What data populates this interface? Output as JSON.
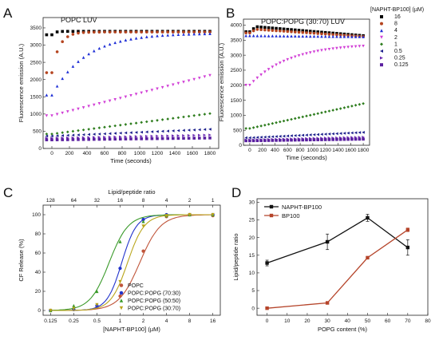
{
  "figure_labels": [
    "A",
    "B",
    "C",
    "D"
  ],
  "legend_top": {
    "title": "[NAPHT-BP100] (µM)",
    "entries": [
      {
        "label": "16",
        "color": "#000000",
        "marker": "square"
      },
      {
        "label": "8",
        "color": "#b5441f",
        "marker": "circle"
      },
      {
        "label": "4",
        "color": "#1f2fd6",
        "marker": "triangle-up"
      },
      {
        "label": "2",
        "color": "#d13fd6",
        "marker": "triangle-down"
      },
      {
        "label": "1",
        "color": "#2e7d1e",
        "marker": "diamond"
      },
      {
        "label": "0.5",
        "color": "#1b1f8c",
        "marker": "triangle-left"
      },
      {
        "label": "0.25",
        "color": "#6c2cb3",
        "marker": "triangle-right"
      },
      {
        "label": "0.125",
        "color": "#5a1fa0",
        "marker": "square"
      }
    ]
  },
  "chart_data": [
    {
      "id": "A",
      "type": "scatter",
      "title": "POPC LUV",
      "xlabel": "Time (seconds)",
      "ylabel": "Fluorescence emission (A.U.)",
      "xlim": [
        -100,
        1900
      ],
      "ylim": [
        0,
        3800
      ],
      "xticks": [
        0,
        200,
        400,
        600,
        800,
        1000,
        1200,
        1400,
        1600,
        1800
      ],
      "yticks": [
        0,
        500,
        1000,
        1500,
        2000,
        2500,
        3000,
        3500
      ],
      "series": [
        {
          "name": "16",
          "model": {
            "type": "exp",
            "a": 3300,
            "b": 3400,
            "k": 0.03
          }
        },
        {
          "name": "8",
          "model": {
            "type": "exp",
            "a": 2200,
            "b": 3380,
            "k": 0.012
          }
        },
        {
          "name": "4",
          "model": {
            "type": "exp",
            "a": 1550,
            "b": 3350,
            "k": 0.0026
          }
        },
        {
          "name": "2",
          "model": {
            "type": "lin",
            "a": 950,
            "m": 0.65
          }
        },
        {
          "name": "1",
          "model": {
            "type": "lin",
            "a": 420,
            "m": 0.33
          }
        },
        {
          "name": "0.5",
          "model": {
            "type": "lin",
            "a": 360,
            "m": 0.11
          }
        },
        {
          "name": "0.25",
          "model": {
            "type": "lin",
            "a": 300,
            "m": 0.05
          }
        },
        {
          "name": "0.125",
          "model": {
            "type": "lin",
            "a": 250,
            "m": 0.03
          }
        }
      ]
    },
    {
      "id": "B",
      "type": "scatter",
      "title": "POPC:POPG (30:70) LUV",
      "xlabel": "Time (seconds)",
      "ylabel": "Fluorescence emission (A.U.)",
      "xlim": [
        -100,
        1900
      ],
      "ylim": [
        0,
        4200
      ],
      "xticks": [
        0,
        200,
        400,
        600,
        800,
        1000,
        1200,
        1400,
        1600,
        1800
      ],
      "yticks": [
        0,
        500,
        1000,
        1500,
        2000,
        2500,
        3000,
        3500,
        4000
      ],
      "series": [
        {
          "name": "16",
          "model": {
            "type": "peak",
            "a": 3780,
            "peak": 3950,
            "end": 3650
          }
        },
        {
          "name": "8",
          "model": {
            "type": "peak",
            "a": 3740,
            "peak": 3860,
            "end": 3620
          }
        },
        {
          "name": "4",
          "model": {
            "type": "lin",
            "a": 3650,
            "m": -0.02
          }
        },
        {
          "name": "2",
          "model": {
            "type": "exp",
            "a": 2000,
            "b": 3380,
            "k": 0.0016
          }
        },
        {
          "name": "1",
          "model": {
            "type": "lin",
            "a": 560,
            "m": 0.46
          }
        },
        {
          "name": "0.5",
          "model": {
            "type": "lin",
            "a": 250,
            "m": 0.1
          }
        },
        {
          "name": "0.25",
          "model": {
            "type": "lin",
            "a": 180,
            "m": 0.05
          }
        },
        {
          "name": "0.125",
          "model": {
            "type": "lin",
            "a": 150,
            "m": 0.03
          }
        }
      ]
    },
    {
      "id": "C",
      "type": "scatter",
      "xlabel": "[NAPHT-BP100] (µM)",
      "ylabel": "CF Release (%)",
      "x2label": "Lipid/peptide ratio",
      "xscale": "log2",
      "xlim": [
        0.1,
        20
      ],
      "ylim": [
        -5,
        110
      ],
      "xticks": [
        0.125,
        0.25,
        0.5,
        1,
        2,
        4,
        8,
        16
      ],
      "xticklabels": [
        "0.125",
        "0.25",
        "0.5",
        "1",
        "2",
        "4",
        "8",
        "16"
      ],
      "x2ticklabels": [
        "128",
        "64",
        "32",
        "16",
        "8",
        "4",
        "2",
        "1"
      ],
      "yticks": [
        0,
        20,
        40,
        60,
        80,
        100
      ],
      "series": [
        {
          "name": "POPC",
          "color": "#c0553a",
          "marker": "circle",
          "x": [
            0.125,
            0.25,
            0.5,
            1,
            2,
            4,
            8,
            16
          ],
          "y": [
            0,
            1,
            3,
            15,
            62,
            98,
            100,
            99
          ],
          "ec50": 1.8,
          "hill": 3.2
        },
        {
          "name": "POPC:POPG (70:30)",
          "color": "#2233cc",
          "marker": "circle",
          "x": [
            0.125,
            0.25,
            0.5,
            1,
            2,
            4,
            8,
            16
          ],
          "y": [
            0,
            1,
            5,
            44,
            95,
            100,
            100,
            100
          ],
          "ec50": 1.05,
          "hill": 4.5
        },
        {
          "name": "POPC:POPG (50:50)",
          "color": "#3a9a2a",
          "marker": "triangle-up",
          "x": [
            0.125,
            0.25,
            0.5,
            1,
            2,
            4,
            8,
            16
          ],
          "y": [
            0,
            5,
            20,
            72,
            93,
            99,
            100,
            100
          ],
          "ec50": 0.72,
          "hill": 3.5
        },
        {
          "name": "POPC:POPG (30:70)",
          "color": "#b9a51a",
          "marker": "triangle-down",
          "x": [
            0.125,
            0.25,
            0.5,
            1,
            2,
            4,
            8,
            16
          ],
          "y": [
            0,
            2,
            6,
            30,
            88,
            99,
            100,
            100
          ],
          "ec50": 1.25,
          "hill": 4.0
        }
      ]
    },
    {
      "id": "D",
      "type": "line",
      "xlabel": "POPG content (%)",
      "ylabel": "Lipid/peptide ratio",
      "xlim": [
        -5,
        80
      ],
      "ylim": [
        -2,
        31
      ],
      "xticks": [
        0,
        10,
        20,
        30,
        40,
        50,
        60,
        70,
        80
      ],
      "yticks": [
        0,
        5,
        10,
        15,
        20,
        25,
        30
      ],
      "series": [
        {
          "name": "NAPHT-BP100",
          "color": "#111111",
          "x": [
            0,
            30,
            50,
            70
          ],
          "y": [
            12.8,
            18.8,
            25.6,
            17.2
          ],
          "err": [
            0.8,
            2.2,
            1.0,
            2.2
          ]
        },
        {
          "name": "BP100",
          "color": "#b5442a",
          "x": [
            0,
            30,
            50,
            70
          ],
          "y": [
            0,
            1.5,
            14.3,
            22.2
          ],
          "err": [
            0.2,
            0.3,
            0.3,
            0.5
          ]
        }
      ]
    }
  ]
}
